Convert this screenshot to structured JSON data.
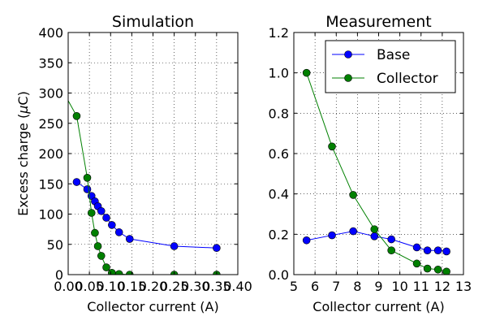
{
  "chart_data": [
    {
      "type": "line",
      "title": "Simulation",
      "xlabel": "Collector current (A)",
      "ylabel_main": "Excess charge (",
      "ylabel_mu": "μ",
      "ylabel_tail": "C)",
      "xlim": [
        0,
        0.4
      ],
      "ylim": [
        0,
        400
      ],
      "grid": true,
      "x_ticks": [
        0,
        0.05,
        0.1,
        0.15,
        0.2,
        0.25,
        0.3,
        0.35,
        0.4
      ],
      "x_tick_labels": [
        "0.00",
        "0.05",
        "0.10",
        "0.15",
        "0.20",
        "0.25",
        "0.30",
        "0.35",
        "0.40"
      ],
      "y_ticks": [
        0,
        50,
        100,
        150,
        200,
        250,
        300,
        350,
        400
      ],
      "y_tick_labels": [
        "0",
        "50",
        "100",
        "150",
        "200",
        "250",
        "300",
        "350",
        "400"
      ],
      "series": [
        {
          "color": "#0000ff",
          "points": [
            [
              0.02,
              153
            ],
            [
              0.045,
              141
            ],
            [
              0.055,
              130
            ],
            [
              0.063,
              121
            ],
            [
              0.07,
              113
            ],
            [
              0.078,
              105
            ],
            [
              0.09,
              94
            ],
            [
              0.103,
              82
            ],
            [
              0.12,
              70
            ],
            [
              0.145,
              59
            ],
            [
              0.25,
              47
            ],
            [
              0.35,
              44
            ]
          ]
        },
        {
          "color": "#008000",
          "points": [
            [
              -0.01,
              300
            ],
            [
              0.02,
              262
            ],
            [
              0.045,
              160
            ],
            [
              0.055,
              102
            ],
            [
              0.063,
              69
            ],
            [
              0.07,
              47
            ],
            [
              0.078,
              31
            ],
            [
              0.09,
              12
            ],
            [
              0.103,
              3
            ],
            [
              0.12,
              1
            ],
            [
              0.145,
              0
            ],
            [
              0.25,
              0
            ],
            [
              0.35,
              0
            ]
          ]
        }
      ]
    },
    {
      "type": "line",
      "title": "Measurement",
      "xlabel": "Collector current (A)",
      "xlim": [
        5,
        13
      ],
      "ylim": [
        0,
        1.2
      ],
      "grid": true,
      "legend_position": "top-right",
      "x_ticks": [
        5,
        6,
        7,
        8,
        9,
        10,
        11,
        12,
        13
      ],
      "x_tick_labels": [
        "5",
        "6",
        "7",
        "8",
        "9",
        "10",
        "11",
        "12",
        "13"
      ],
      "y_ticks": [
        0,
        0.2,
        0.4,
        0.6,
        0.8,
        1.0,
        1.2
      ],
      "y_tick_labels": [
        "0.0",
        "0.2",
        "0.4",
        "0.6",
        "0.8",
        "1.0",
        "1.2"
      ],
      "series": [
        {
          "name": "Base",
          "color": "#0000ff",
          "points": [
            [
              5.6,
              0.17
            ],
            [
              6.8,
              0.195
            ],
            [
              7.8,
              0.215
            ],
            [
              8.8,
              0.19
            ],
            [
              9.6,
              0.175
            ],
            [
              10.8,
              0.135
            ],
            [
              11.3,
              0.12
            ],
            [
              11.8,
              0.12
            ],
            [
              12.2,
              0.115
            ]
          ]
        },
        {
          "name": "Collector",
          "color": "#008000",
          "points": [
            [
              5.6,
              1.0
            ],
            [
              6.8,
              0.635
            ],
            [
              7.8,
              0.395
            ],
            [
              8.8,
              0.225
            ],
            [
              9.6,
              0.12
            ],
            [
              10.8,
              0.055
            ],
            [
              11.3,
              0.03
            ],
            [
              11.8,
              0.025
            ],
            [
              12.2,
              0.015
            ]
          ]
        }
      ]
    }
  ]
}
